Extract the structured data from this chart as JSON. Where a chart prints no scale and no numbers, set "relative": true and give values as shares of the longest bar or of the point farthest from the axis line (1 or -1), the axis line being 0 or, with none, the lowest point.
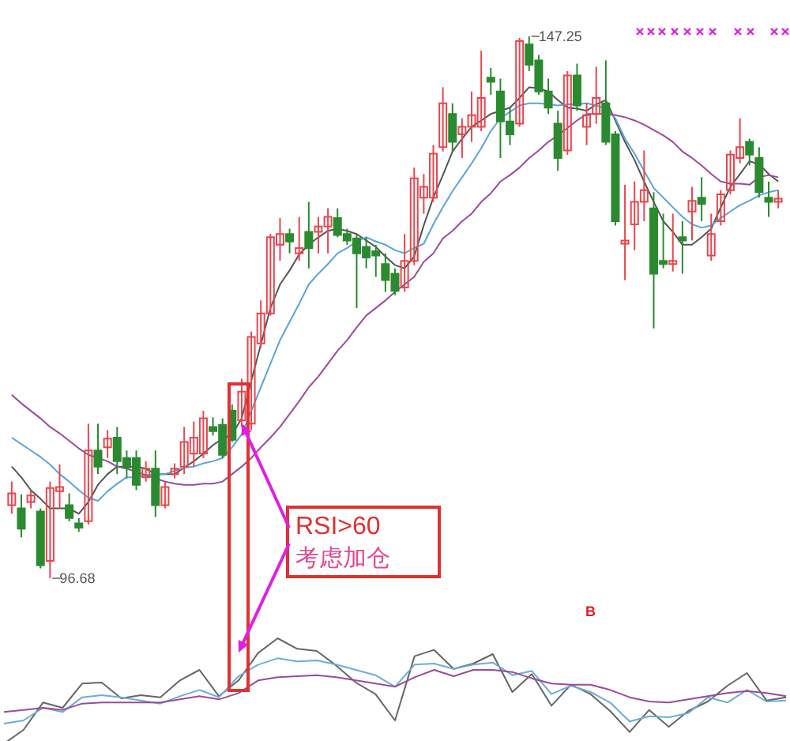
{
  "chart_data": [
    {
      "type": "candlestick",
      "categories": [
        null,
        null,
        null,
        null,
        null,
        null,
        null,
        null,
        null,
        null,
        null,
        null,
        null,
        null,
        null,
        null,
        null,
        null,
        null,
        null,
        null,
        null,
        null,
        null,
        null,
        null,
        null,
        null,
        null,
        null,
        null,
        null,
        null,
        null,
        null,
        null,
        null,
        null,
        null,
        null,
        null,
        null,
        null,
        null,
        null,
        null,
        null,
        null,
        null,
        null,
        null,
        null,
        null,
        null,
        null,
        null,
        null,
        null,
        null,
        null,
        null,
        null,
        null,
        null,
        null,
        null,
        null,
        null,
        null,
        null,
        null,
        null,
        null,
        null,
        null,
        null,
        null,
        null,
        null,
        null,
        null
      ],
      "ohlc": [
        [
          103.5,
          105.7,
          102.7,
          104.6
        ],
        [
          103.2,
          104.5,
          100.5,
          101.3
        ],
        [
          103.8,
          104.9,
          103.2,
          104.4
        ],
        [
          102.9,
          103.2,
          97.6,
          97.9
        ],
        [
          98.3,
          105.7,
          96.68,
          105.1
        ],
        [
          104.8,
          107.3,
          103.2,
          105.2
        ],
        [
          103.5,
          104.6,
          102.0,
          102.3
        ],
        [
          101.8,
          102.3,
          101.0,
          101.4
        ],
        [
          102.0,
          111.1,
          101.7,
          108.6
        ],
        [
          108.6,
          111.1,
          106.4,
          107.1
        ],
        [
          108.9,
          110.5,
          107.9,
          109.7
        ],
        [
          109.8,
          110.8,
          106.4,
          107.6
        ],
        [
          107.9,
          108.6,
          106.0,
          107.0
        ],
        [
          107.9,
          108.6,
          104.9,
          105.4
        ],
        [
          106.1,
          107.6,
          105.7,
          106.9
        ],
        [
          106.9,
          108.6,
          102.4,
          103.5
        ],
        [
          103.5,
          105.7,
          103.2,
          105.2
        ],
        [
          106.4,
          107.4,
          106.0,
          106.9
        ],
        [
          107.1,
          110.8,
          106.4,
          109.4
        ],
        [
          108.3,
          111.3,
          107.1,
          109.8
        ],
        [
          108.3,
          112.3,
          107.9,
          111.6
        ],
        [
          110.8,
          111.7,
          110.0,
          110.4
        ],
        [
          111.0,
          111.6,
          107.9,
          108.2
        ],
        [
          112.3,
          112.9,
          109.4,
          109.6
        ],
        [
          111.4,
          115.3,
          110.8,
          114.1
        ],
        [
          111.1,
          119.7,
          110.5,
          119.2
        ],
        [
          118.6,
          122.6,
          118.2,
          121.4
        ],
        [
          121.4,
          128.8,
          121.2,
          128.5
        ],
        [
          127.8,
          130.3,
          126.3,
          128.8
        ],
        [
          128.8,
          129.3,
          127.0,
          128.1
        ],
        [
          127.0,
          130.4,
          126.3,
          127.5
        ],
        [
          129.0,
          131.8,
          125.6,
          127.5
        ],
        [
          129.0,
          130.4,
          127.0,
          129.5
        ],
        [
          129.5,
          131.2,
          127.0,
          130.4
        ],
        [
          130.3,
          131.2,
          128.5,
          128.7
        ],
        [
          128.8,
          129.3,
          127.8,
          128.2
        ],
        [
          128.4,
          128.8,
          121.9,
          127.0
        ],
        [
          127.6,
          128.5,
          125.6,
          126.6
        ],
        [
          127.2,
          127.8,
          124.8,
          126.8
        ],
        [
          126.0,
          127.0,
          123.4,
          124.5
        ],
        [
          125.1,
          125.6,
          123.1,
          123.5
        ],
        [
          123.8,
          128.8,
          123.4,
          126.3
        ],
        [
          126.3,
          135.0,
          125.9,
          134.0
        ],
        [
          132.2,
          134.4,
          130.7,
          133.2
        ],
        [
          132.2,
          137.1,
          131.8,
          136.3
        ],
        [
          136.9,
          142.5,
          136.5,
          141.0
        ],
        [
          140.0,
          141.0,
          136.5,
          137.4
        ],
        [
          138.1,
          139.6,
          135.9,
          138.8
        ],
        [
          138.8,
          142.1,
          137.4,
          139.9
        ],
        [
          138.8,
          145.9,
          138.4,
          141.5
        ],
        [
          143.4,
          144.3,
          141.8,
          143.0
        ],
        [
          142.1,
          143.3,
          135.9,
          139.3
        ],
        [
          139.3,
          140.6,
          137.1,
          138.1
        ],
        [
          139.1,
          147.1,
          138.8,
          146.8
        ],
        [
          146.5,
          147.25,
          144.0,
          144.6
        ],
        [
          145.0,
          145.5,
          141.8,
          142.1
        ],
        [
          142.1,
          143.3,
          140.0,
          140.6
        ],
        [
          139.1,
          140.3,
          134.7,
          135.9
        ],
        [
          136.6,
          144.0,
          136.2,
          143.6
        ],
        [
          143.6,
          144.7,
          140.3,
          140.8
        ],
        [
          138.8,
          141.0,
          137.1,
          139.9
        ],
        [
          140.0,
          144.4,
          139.1,
          141.5
        ],
        [
          141.0,
          145.0,
          137.1,
          137.4
        ],
        [
          138.1,
          138.4,
          129.6,
          130.0
        ],
        [
          127.9,
          133.4,
          124.5,
          128.2
        ],
        [
          129.7,
          133.7,
          127.3,
          131.8
        ],
        [
          131.8,
          136.6,
          130.0,
          132.9
        ],
        [
          131.2,
          132.7,
          120.0,
          125.1
        ],
        [
          126.3,
          130.7,
          125.6,
          126.0
        ],
        [
          126.0,
          130.7,
          125.3,
          126.3
        ],
        [
          128.5,
          130.0,
          125.1,
          128.2
        ],
        [
          130.9,
          133.2,
          128.2,
          131.9
        ],
        [
          132.2,
          134.1,
          130.0,
          131.6
        ],
        [
          126.8,
          130.7,
          126.3,
          128.8
        ],
        [
          130.0,
          132.9,
          129.6,
          132.5
        ],
        [
          132.9,
          136.6,
          132.5,
          136.2
        ],
        [
          135.9,
          139.6,
          135.4,
          136.9
        ],
        [
          137.4,
          137.7,
          135.2,
          136.2
        ],
        [
          135.9,
          136.9,
          132.2,
          132.7
        ],
        [
          132.2,
          133.7,
          130.4,
          131.8
        ],
        [
          131.8,
          132.9,
          131.2,
          132.1
        ]
      ],
      "series": [
        {
          "type": "line",
          "color": "#555555",
          "values": [
            107.1,
            106.1,
            104.9,
            104.1,
            103.2,
            103.2,
            103.2,
            102.7,
            103.8,
            105.4,
            106.4,
            107.1,
            107.1,
            107.1,
            106.9,
            106.4,
            106.4,
            106.4,
            107.0,
            107.6,
            108.3,
            109.1,
            109.7,
            110.1,
            111.6,
            115.1,
            118.5,
            121.9,
            124.1,
            125.4,
            126.9,
            127.8,
            128.5,
            129.1,
            129.3,
            129.1,
            128.8,
            128.2,
            127.6,
            126.7,
            125.9,
            125.6,
            126.7,
            129.6,
            132.2,
            134.3,
            136.5,
            137.7,
            138.8,
            139.4,
            140.0,
            140.3,
            140.6,
            141.5,
            142.5,
            142.4,
            142.1,
            141.3,
            140.6,
            140.5,
            140.3,
            140.9,
            141.3,
            139.4,
            137.4,
            135.7,
            133.7,
            131.8,
            130.0,
            129.0,
            127.8,
            127.8,
            128.5,
            129.3,
            131.3,
            133.2,
            134.4,
            135.6,
            135.3,
            134.4,
            133.7
          ]
        },
        {
          "type": "line",
          "color": "#5aa6d6",
          "values": [
            109.8,
            109.2,
            108.6,
            108.0,
            107.3,
            106.4,
            105.7,
            104.9,
            104.2,
            103.9,
            104.8,
            105.5,
            106.1,
            106.1,
            106.3,
            106.4,
            106.4,
            106.7,
            107.0,
            107.1,
            107.4,
            107.6,
            107.9,
            108.9,
            110.1,
            112.3,
            114.5,
            116.7,
            118.9,
            120.6,
            122.3,
            124.1,
            125.1,
            126.0,
            127.0,
            127.5,
            128.1,
            128.5,
            128.1,
            127.8,
            127.3,
            127.0,
            127.5,
            127.9,
            129.7,
            131.3,
            132.8,
            134.1,
            135.4,
            136.8,
            138.4,
            139.6,
            140.2,
            140.8,
            141.0,
            141.0,
            140.9,
            140.8,
            140.9,
            140.9,
            141.0,
            140.8,
            140.5,
            139.6,
            137.7,
            136.3,
            134.7,
            133.1,
            132.2,
            131.3,
            130.4,
            129.7,
            129.4,
            129.6,
            130.3,
            130.9,
            131.5,
            131.9,
            132.4,
            132.7,
            132.9
          ]
        },
        {
          "type": "line",
          "color": "#9c4a9c",
          "values": [
            113.8,
            113.0,
            112.3,
            111.6,
            110.8,
            110.2,
            109.5,
            108.8,
            108.2,
            107.9,
            107.6,
            107.1,
            106.9,
            106.6,
            106.3,
            106.0,
            105.7,
            105.5,
            105.4,
            105.4,
            105.5,
            105.5,
            105.7,
            106.4,
            107.1,
            107.9,
            108.9,
            109.8,
            110.8,
            112.0,
            113.2,
            114.5,
            115.5,
            116.7,
            117.9,
            118.9,
            120.1,
            121.2,
            121.9,
            122.6,
            123.4,
            124.1,
            124.8,
            126.2,
            127.0,
            128.4,
            129.1,
            130.0,
            130.7,
            131.8,
            132.6,
            133.7,
            134.3,
            135.0,
            135.9,
            136.6,
            137.4,
            138.0,
            138.7,
            139.4,
            140.0,
            140.0,
            140.0,
            139.9,
            139.7,
            139.4,
            139.0,
            138.5,
            138.0,
            137.4,
            136.5,
            135.9,
            135.2,
            134.4,
            133.7,
            133.5,
            133.5,
            133.4,
            134.1,
            134.3,
            134.1
          ]
        }
      ],
      "annotations": [
        "147.25",
        "96.68",
        "RSI>60\n考虑加仓"
      ]
    },
    {
      "type": "line",
      "relative": true,
      "categories": [
        null,
        null,
        null,
        null,
        null,
        null,
        null,
        null,
        null,
        null,
        null,
        null,
        null,
        null,
        null,
        null,
        null,
        null,
        null,
        null,
        null,
        null,
        null,
        null,
        null,
        null,
        null,
        null,
        null,
        null,
        null,
        null,
        null,
        null,
        null,
        null,
        null,
        null,
        null,
        null,
        null
      ],
      "series": [
        {
          "color": "#666666",
          "values": [
            0,
            0.13,
            0.39,
            0.34,
            0.57,
            0.58,
            0.43,
            0.46,
            0.44,
            0.6,
            0.7,
            0.45,
            0.6,
            0.86,
            1,
            0.9,
            0.88,
            0.74,
            0.58,
            0.47,
            0.22,
            0.83,
            0.89,
            0.71,
            0.76,
            0.85,
            0.49,
            0.66,
            0.36,
            0.56,
            0.47,
            0.31,
            0.11,
            0.32,
            0.16,
            0.31,
            0.4,
            0.55,
            0.67,
            0.41,
            0.44
          ]
        },
        {
          "color": "#6aaed6",
          "values": [
            0.19,
            0.22,
            0.34,
            0.3,
            0.44,
            0.46,
            0.44,
            0.41,
            0.38,
            0.45,
            0.51,
            0.44,
            0.64,
            0.75,
            0.81,
            0.78,
            0.79,
            0.75,
            0.7,
            0.65,
            0.54,
            0.75,
            0.76,
            0.71,
            0.75,
            0.77,
            0.65,
            0.69,
            0.47,
            0.55,
            0.49,
            0.39,
            0.21,
            0.26,
            0.25,
            0.29,
            0.44,
            0.39,
            0.51,
            0.4,
            0.41
          ]
        },
        {
          "color": "#9c4a9c",
          "values": [
            0.3,
            0.32,
            0.34,
            0.32,
            0.38,
            0.39,
            0.39,
            0.39,
            0.39,
            0.42,
            0.45,
            0.42,
            0.48,
            0.6,
            0.63,
            0.64,
            0.65,
            0.63,
            0.6,
            0.57,
            0.54,
            0.63,
            0.7,
            0.64,
            0.7,
            0.7,
            0.68,
            0.62,
            0.57,
            0.56,
            0.56,
            0.51,
            0.44,
            0.4,
            0.39,
            0.42,
            0.45,
            0.48,
            0.5,
            0.48,
            0.45
          ]
        }
      ],
      "annotations": [
        "B"
      ]
    }
  ]
}
